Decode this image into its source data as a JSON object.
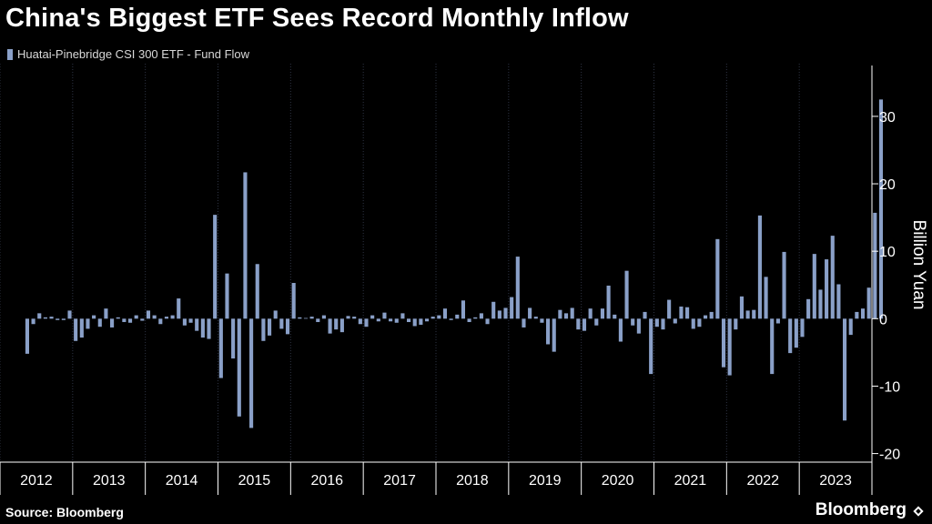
{
  "header": {
    "title": "China's Biggest ETF Sees Record Monthly Inflow"
  },
  "footer": {
    "source": "Source: Bloomberg",
    "brand": "Bloomberg"
  },
  "colors": {
    "bar": "#8aa0c8",
    "background": "#000000",
    "axis": "#ffffff",
    "grid": "#2e3444"
  },
  "chart_data": {
    "type": "bar",
    "series": [
      {
        "name": "Huatai-Pinebridge CSI 300 ETF - Fund Flow",
        "start": "2012-05",
        "frequency": "monthly",
        "values": [
          -5.2,
          -0.8,
          0.8,
          0.2,
          0.3,
          -0.2,
          -0.2,
          1.2,
          -3.3,
          -2.8,
          -1.5,
          0.5,
          -1.2,
          1.5,
          -1.3,
          0.2,
          -0.5,
          -0.6,
          0.5,
          -0.3,
          1.2,
          0.5,
          -0.8,
          0.3,
          0.5,
          3.0,
          -1.0,
          -0.6,
          -1.8,
          -2.8,
          -3.0,
          15.4,
          -8.8,
          6.7,
          -5.9,
          -14.5,
          21.7,
          -16.2,
          8.1,
          -3.3,
          -2.5,
          1.2,
          -1.5,
          -2.3,
          5.3,
          0.2,
          0.1,
          0.3,
          -0.5,
          0.5,
          -2.2,
          -1.6,
          -2.0,
          0.4,
          0.3,
          -0.8,
          -1.2,
          0.5,
          -0.4,
          0.9,
          -0.4,
          -0.6,
          0.8,
          -0.5,
          -1.1,
          -0.9,
          -0.4,
          0.3,
          0.5,
          1.5,
          -0.2,
          0.6,
          2.7,
          -0.5,
          0.2,
          0.8,
          -0.8,
          2.5,
          1.2,
          1.6,
          3.2,
          9.2,
          -1.3,
          1.6,
          0.3,
          -0.6,
          -3.8,
          -4.9,
          1.3,
          0.8,
          1.6,
          -1.6,
          -1.8,
          1.5,
          -1.0,
          1.5,
          4.9,
          0.6,
          -3.4,
          7.1,
          -1.0,
          -2.2,
          1.0,
          -8.2,
          -1.2,
          -1.6,
          2.8,
          -0.7,
          1.8,
          1.7,
          -1.5,
          -1.2,
          0.5,
          1.0,
          11.8,
          -7.2,
          -8.4,
          -1.6,
          3.3,
          1.2,
          1.3,
          15.3,
          6.2,
          -8.2,
          -0.7,
          9.9,
          -5.1,
          -4.3,
          -2.7,
          2.9,
          9.6,
          4.3,
          8.8,
          12.3,
          5.1,
          -15.1,
          -2.4,
          1.0,
          1.5,
          4.6,
          15.7,
          32.5
        ]
      }
    ],
    "x_years": [
      "2012",
      "2013",
      "2014",
      "2015",
      "2016",
      "2017",
      "2018",
      "2019",
      "2020",
      "2021",
      "2022",
      "2023"
    ],
    "ylabel": "Billion Yuan",
    "ylim": [
      -21,
      37
    ],
    "yticks": [
      -20,
      -10,
      0,
      10,
      20,
      30
    ],
    "grid": true,
    "legend_position": "top-left"
  }
}
